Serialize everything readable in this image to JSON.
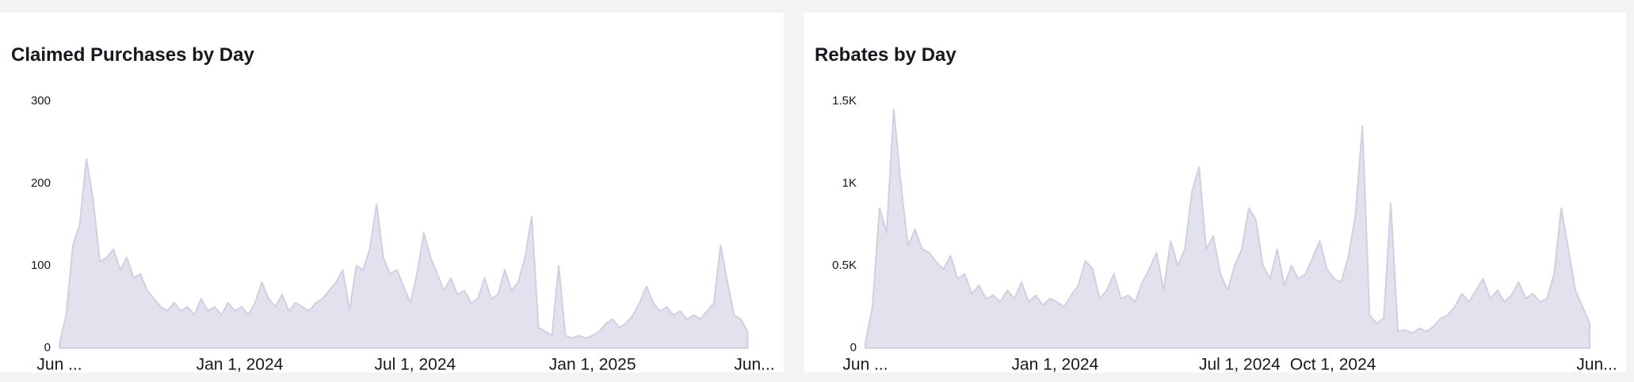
{
  "chart_data": [
    {
      "type": "area",
      "title": "Claimed Purchases by Day",
      "color": "#e2e2ee",
      "xlim": [
        "2023-06-28",
        "2025-06-18"
      ],
      "xticks": [
        {
          "value": "2023-06-28",
          "label": "Jun ..."
        },
        {
          "value": "2024-01-01",
          "label": "Jan 1, 2024"
        },
        {
          "value": "2024-07-01",
          "label": "Jul 1, 2024"
        },
        {
          "value": "2025-01-01",
          "label": "Jan 1, 2025"
        },
        {
          "value": "2025-06-18",
          "label": "Jun..."
        }
      ],
      "ylim": [
        0,
        300
      ],
      "yticks": [
        0,
        100,
        200,
        300
      ],
      "x": [
        "2023-06-28",
        "2023-07-05",
        "2023-07-12",
        "2023-07-19",
        "2023-07-26",
        "2023-08-02",
        "2023-08-09",
        "2023-08-16",
        "2023-08-23",
        "2023-08-30",
        "2023-09-06",
        "2023-09-13",
        "2023-09-20",
        "2023-09-27",
        "2023-10-04",
        "2023-10-11",
        "2023-10-18",
        "2023-10-25",
        "2023-11-01",
        "2023-11-08",
        "2023-11-15",
        "2023-11-22",
        "2023-11-29",
        "2023-12-06",
        "2023-12-13",
        "2023-12-20",
        "2023-12-27",
        "2024-01-03",
        "2024-01-10",
        "2024-01-17",
        "2024-01-24",
        "2024-01-31",
        "2024-02-07",
        "2024-02-14",
        "2024-02-21",
        "2024-02-28",
        "2024-03-06",
        "2024-03-13",
        "2024-03-20",
        "2024-03-27",
        "2024-04-03",
        "2024-04-10",
        "2024-04-17",
        "2024-04-24",
        "2024-05-01",
        "2024-05-08",
        "2024-05-15",
        "2024-05-22",
        "2024-05-29",
        "2024-06-05",
        "2024-06-12",
        "2024-06-19",
        "2024-06-26",
        "2024-07-03",
        "2024-07-10",
        "2024-07-17",
        "2024-07-24",
        "2024-07-31",
        "2024-08-07",
        "2024-08-14",
        "2024-08-21",
        "2024-08-28",
        "2024-09-04",
        "2024-09-11",
        "2024-09-18",
        "2024-09-25",
        "2024-10-02",
        "2024-10-09",
        "2024-10-16",
        "2024-10-23",
        "2024-10-30",
        "2024-11-06",
        "2024-11-13",
        "2024-11-20",
        "2024-11-27",
        "2024-12-04",
        "2024-12-11",
        "2024-12-18",
        "2024-12-25",
        "2025-01-01",
        "2025-01-08",
        "2025-01-15",
        "2025-01-22",
        "2025-01-29",
        "2025-02-05",
        "2025-02-12",
        "2025-02-19",
        "2025-02-26",
        "2025-03-05",
        "2025-03-12",
        "2025-03-19",
        "2025-03-26",
        "2025-04-02",
        "2025-04-09",
        "2025-04-16",
        "2025-04-23",
        "2025-04-30",
        "2025-05-07",
        "2025-05-14",
        "2025-05-21",
        "2025-05-28",
        "2025-06-04",
        "2025-06-11"
      ],
      "values": [
        5,
        40,
        125,
        150,
        230,
        180,
        105,
        110,
        120,
        95,
        110,
        85,
        90,
        70,
        60,
        50,
        45,
        55,
        45,
        50,
        40,
        60,
        45,
        50,
        40,
        55,
        45,
        50,
        40,
        55,
        80,
        60,
        50,
        65,
        45,
        55,
        50,
        45,
        55,
        60,
        70,
        80,
        95,
        45,
        100,
        95,
        120,
        175,
        110,
        90,
        95,
        75,
        55,
        90,
        140,
        110,
        90,
        70,
        85,
        65,
        70,
        55,
        60,
        85,
        60,
        65,
        95,
        70,
        80,
        110,
        160,
        25,
        20,
        15,
        100,
        15,
        12,
        15,
        12,
        15,
        20,
        30,
        35,
        25,
        30,
        40,
        55,
        75,
        55,
        45,
        50,
        40,
        45,
        35,
        40,
        35,
        45,
        55,
        125,
        80,
        40,
        35,
        20
      ]
    },
    {
      "type": "area",
      "title": "Rebates by Day",
      "color": "#e2e2ee",
      "xlim": [
        "2023-06-28",
        "2025-06-18"
      ],
      "xticks": [
        {
          "value": "2023-06-28",
          "label": "Jun ..."
        },
        {
          "value": "2024-01-01",
          "label": "Jan 1, 2024"
        },
        {
          "value": "2024-07-01",
          "label": "Jul 1, 2024"
        },
        {
          "value": "2024-10-01",
          "label": "Oct 1, 2024"
        },
        {
          "value": "2025-06-18",
          "label": "Jun..."
        }
      ],
      "ylim": [
        0,
        1500
      ],
      "yticks": [
        0,
        {
          "value": 500,
          "label": "0.5K"
        },
        {
          "value": 1000,
          "label": "1K"
        },
        {
          "value": 1500,
          "label": "1.5K"
        }
      ],
      "x": [
        "2023-06-28",
        "2023-07-05",
        "2023-07-12",
        "2023-07-19",
        "2023-07-26",
        "2023-08-02",
        "2023-08-09",
        "2023-08-16",
        "2023-08-23",
        "2023-08-30",
        "2023-09-06",
        "2023-09-13",
        "2023-09-20",
        "2023-09-27",
        "2023-10-04",
        "2023-10-11",
        "2023-10-18",
        "2023-10-25",
        "2023-11-01",
        "2023-11-08",
        "2023-11-15",
        "2023-11-22",
        "2023-11-29",
        "2023-12-06",
        "2023-12-13",
        "2023-12-20",
        "2023-12-27",
        "2024-01-03",
        "2024-01-10",
        "2024-01-17",
        "2024-01-24",
        "2024-01-31",
        "2024-02-07",
        "2024-02-14",
        "2024-02-21",
        "2024-02-28",
        "2024-03-06",
        "2024-03-13",
        "2024-03-20",
        "2024-03-27",
        "2024-04-03",
        "2024-04-10",
        "2024-04-17",
        "2024-04-24",
        "2024-05-01",
        "2024-05-08",
        "2024-05-15",
        "2024-05-22",
        "2024-05-29",
        "2024-06-05",
        "2024-06-12",
        "2024-06-19",
        "2024-06-26",
        "2024-07-03",
        "2024-07-10",
        "2024-07-17",
        "2024-07-24",
        "2024-07-31",
        "2024-08-07",
        "2024-08-14",
        "2024-08-21",
        "2024-08-28",
        "2024-09-04",
        "2024-09-11",
        "2024-09-18",
        "2024-09-25",
        "2024-10-02",
        "2024-10-09",
        "2024-10-16",
        "2024-10-23",
        "2024-10-30",
        "2024-11-06",
        "2024-11-13",
        "2024-11-20",
        "2024-11-27",
        "2024-12-04",
        "2024-12-11",
        "2024-12-18",
        "2024-12-25",
        "2025-01-01",
        "2025-01-08",
        "2025-01-15",
        "2025-01-22",
        "2025-01-29",
        "2025-02-05",
        "2025-02-12",
        "2025-02-19",
        "2025-02-26",
        "2025-03-05",
        "2025-03-12",
        "2025-03-19",
        "2025-03-26",
        "2025-04-02",
        "2025-04-09",
        "2025-04-16",
        "2025-04-23",
        "2025-04-30",
        "2025-05-07",
        "2025-05-14",
        "2025-05-21",
        "2025-05-28",
        "2025-06-04",
        "2025-06-11"
      ],
      "values": [
        30,
        250,
        850,
        700,
        1450,
        1000,
        620,
        720,
        600,
        580,
        520,
        480,
        560,
        420,
        450,
        330,
        380,
        300,
        320,
        280,
        350,
        300,
        400,
        280,
        320,
        260,
        300,
        280,
        250,
        320,
        380,
        530,
        480,
        300,
        350,
        450,
        300,
        320,
        280,
        400,
        480,
        580,
        350,
        650,
        500,
        600,
        950,
        1100,
        600,
        680,
        450,
        350,
        500,
        600,
        850,
        780,
        500,
        420,
        600,
        380,
        500,
        420,
        450,
        550,
        650,
        480,
        420,
        400,
        550,
        800,
        1350,
        200,
        150,
        180,
        880,
        100,
        110,
        90,
        120,
        100,
        130,
        180,
        200,
        250,
        330,
        280,
        350,
        420,
        300,
        350,
        280,
        320,
        400,
        300,
        330,
        280,
        300,
        450,
        850,
        600,
        350,
        250,
        150
      ]
    }
  ]
}
